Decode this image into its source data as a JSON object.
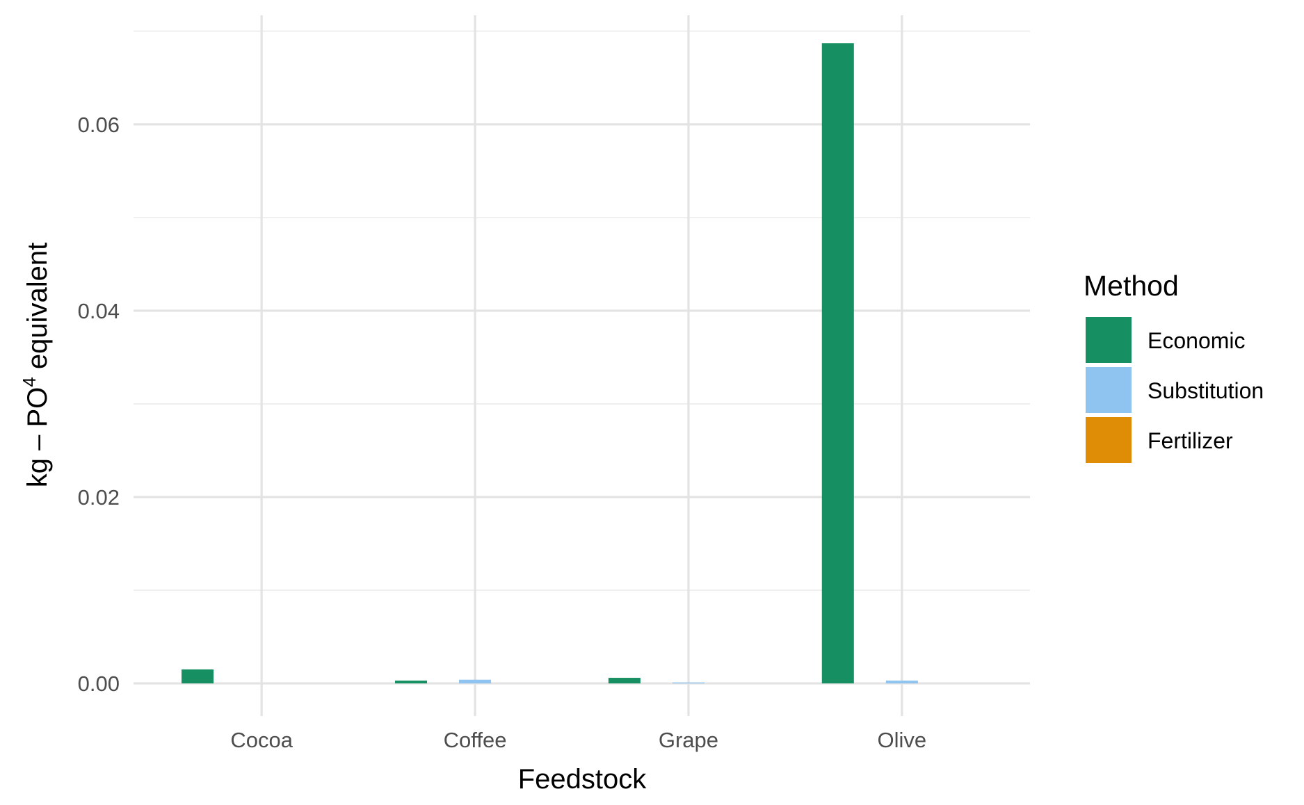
{
  "chart_data": {
    "type": "bar",
    "title": "",
    "xlabel": "Feedstock",
    "ylabel_parts": {
      "prefix": "kg – PO",
      "superscript": "4",
      "suffix": " equivalent"
    },
    "categories": [
      "Cocoa",
      "Coffee",
      "Grape",
      "Olive"
    ],
    "series": [
      {
        "name": "Economic",
        "color": "#168F63",
        "values": [
          0.0015,
          0.0003,
          0.0006,
          0.0687
        ]
      },
      {
        "name": "Substitution",
        "color": "#8EC4EF",
        "values": [
          0.0,
          0.0004,
          0.0001,
          0.0003
        ]
      },
      {
        "name": "Fertilizer",
        "color": "#DF8C07",
        "values": [
          0.0,
          0.0,
          0.0,
          0.0
        ]
      }
    ],
    "ylim": [
      -0.0035,
      0.0717
    ],
    "yticks": [
      0.0,
      0.02,
      0.04,
      0.06
    ],
    "ytick_labels": [
      "0.00",
      "0.02",
      "0.04",
      "0.06"
    ],
    "grid": true,
    "legend": {
      "title": "Method",
      "position": "right"
    }
  }
}
